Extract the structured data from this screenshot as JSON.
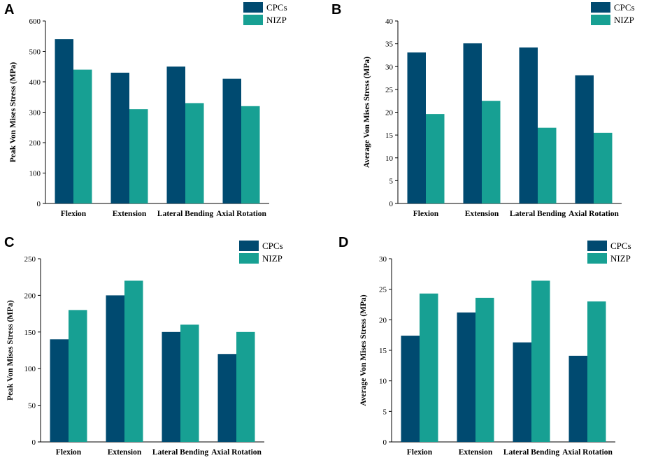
{
  "colors": {
    "cpcs": "#004a70",
    "nizp": "#17a093"
  },
  "chart_data": [
    {
      "panel": "A",
      "type": "bar",
      "categories": [
        "Flexion",
        "Extension",
        "Lateral Bending",
        "Axial Rotation"
      ],
      "series": [
        {
          "name": "CPCs",
          "values": [
            540,
            430,
            450,
            410
          ]
        },
        {
          "name": "NIZP",
          "values": [
            440,
            310,
            330,
            320
          ]
        }
      ],
      "ylabel": "Peak Von Mises Stress (MPa)",
      "ylim": [
        0,
        600
      ],
      "yticks": [
        0,
        100,
        200,
        300,
        400,
        500,
        600
      ],
      "legend": "top-right"
    },
    {
      "panel": "B",
      "type": "bar",
      "categories": [
        "Flexion",
        "Extension",
        "Lateral Bending",
        "Axial Rotation"
      ],
      "series": [
        {
          "name": "CPCs",
          "values": [
            33.1,
            35.1,
            34.2,
            28.1
          ]
        },
        {
          "name": "NIZP",
          "values": [
            19.6,
            22.5,
            16.6,
            15.5
          ]
        }
      ],
      "ylabel": "Average Von Mises Stress (MPa)",
      "ylim": [
        0,
        40
      ],
      "yticks": [
        0,
        5,
        10,
        15,
        20,
        25,
        30,
        35,
        40
      ],
      "legend": "top-right"
    },
    {
      "panel": "C",
      "type": "bar",
      "categories": [
        "Flexion",
        "Extension",
        "Lateral Bending",
        "Axial Rotation"
      ],
      "series": [
        {
          "name": "CPCs",
          "values": [
            140,
            200,
            150,
            120
          ]
        },
        {
          "name": "NIZP",
          "values": [
            180,
            220,
            160,
            150
          ]
        }
      ],
      "ylabel": "Peak Von Mises Stress (MPa)",
      "ylim": [
        0,
        250
      ],
      "yticks": [
        0,
        50,
        100,
        150,
        200,
        250
      ],
      "legend": "top-right"
    },
    {
      "panel": "D",
      "type": "bar",
      "categories": [
        "Flexion",
        "Extension",
        "Lateral Bending",
        "Axial Rotation"
      ],
      "series": [
        {
          "name": "CPCs",
          "values": [
            17.4,
            21.2,
            16.3,
            14.1
          ]
        },
        {
          "name": "NIZP",
          "values": [
            24.3,
            23.6,
            26.4,
            23.0
          ]
        }
      ],
      "ylabel": "Average Von Mises Stress (MPa)",
      "ylim": [
        0,
        30
      ],
      "yticks": [
        0,
        5,
        10,
        15,
        20,
        25,
        30
      ],
      "legend": "top-right"
    }
  ]
}
